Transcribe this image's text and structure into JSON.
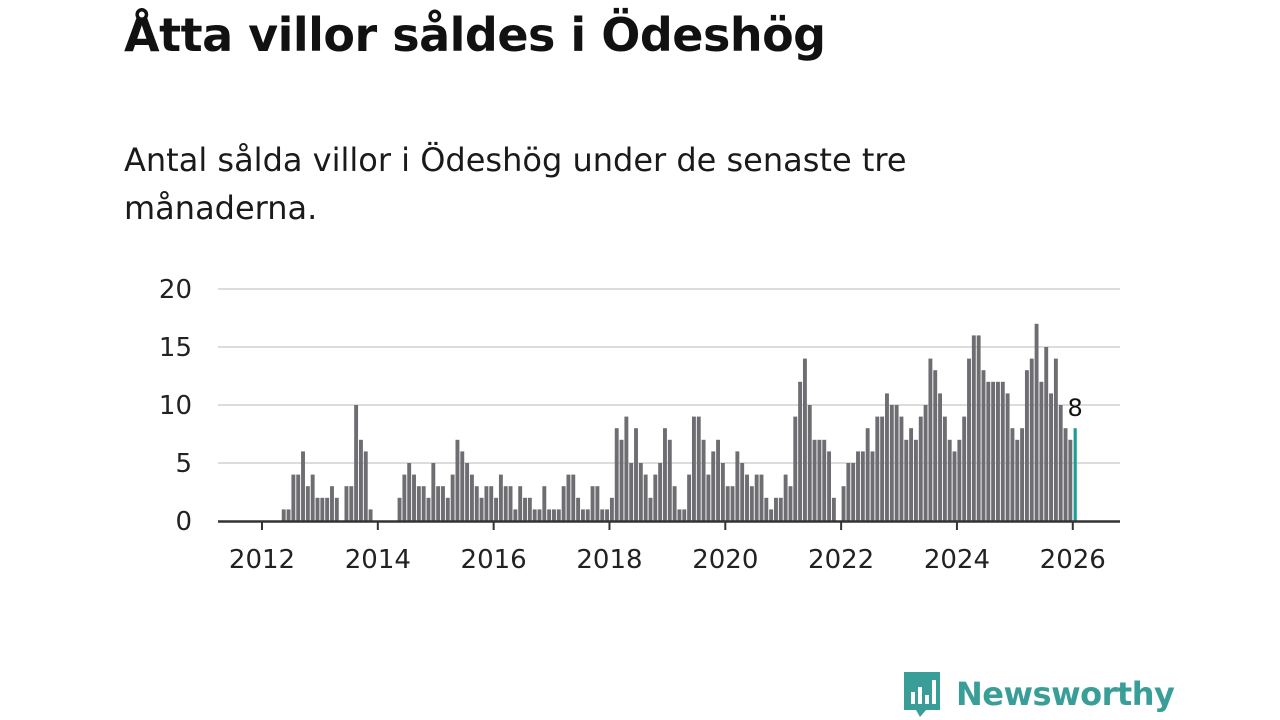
{
  "title": "Åtta villor såldes i Ödeshög",
  "subtitle": "Antal sålda villor i Ödeshög under de senaste tre månaderna.",
  "brand": {
    "name": "Newsworthy",
    "color": "#3a9e98",
    "icon": "newsworthy-logo-icon"
  },
  "colors": {
    "bar": "#6e6d72",
    "highlight": "#1f9c97",
    "grid": "#dcdcdc",
    "axis": "#333333"
  },
  "chart_data": {
    "type": "bar",
    "title": "Åtta villor såldes i Ödeshög",
    "xlabel": "",
    "ylabel": "",
    "ylim": [
      0,
      20
    ],
    "yticks": [
      0,
      5,
      10,
      15,
      20
    ],
    "xticks": [
      {
        "label": "2012",
        "at": 2012.0
      },
      {
        "label": "2014",
        "at": 2014.0
      },
      {
        "label": "2016",
        "at": 2016.0
      },
      {
        "label": "2018",
        "at": 2018.0
      },
      {
        "label": "2020",
        "at": 2020.0
      },
      {
        "label": "2022",
        "at": 2022.0
      },
      {
        "label": "2024",
        "at": 2024.0
      },
      {
        "label": "2026",
        "at": 2026.0
      }
    ],
    "start": "2012-01",
    "interval": "month",
    "values": [
      0,
      0,
      0,
      0,
      1,
      1,
      4,
      4,
      6,
      3,
      4,
      2,
      2,
      2,
      3,
      2,
      0,
      3,
      3,
      10,
      7,
      6,
      1,
      0,
      0,
      0,
      0,
      0,
      2,
      4,
      5,
      4,
      3,
      3,
      2,
      5,
      3,
      3,
      2,
      4,
      7,
      6,
      5,
      4,
      3,
      2,
      3,
      3,
      2,
      4,
      3,
      3,
      1,
      3,
      2,
      2,
      1,
      1,
      3,
      1,
      1,
      1,
      3,
      4,
      4,
      2,
      1,
      1,
      3,
      3,
      1,
      1,
      2,
      8,
      7,
      9,
      5,
      8,
      5,
      4,
      2,
      4,
      5,
      8,
      7,
      3,
      1,
      1,
      4,
      9,
      9,
      7,
      4,
      6,
      7,
      5,
      3,
      3,
      6,
      5,
      4,
      3,
      4,
      4,
      2,
      1,
      2,
      2,
      4,
      3,
      9,
      12,
      14,
      10,
      7,
      7,
      7,
      6,
      2,
      0,
      3,
      5,
      5,
      6,
      6,
      8,
      6,
      9,
      9,
      11,
      10,
      10,
      9,
      7,
      8,
      7,
      9,
      10,
      14,
      13,
      11,
      9,
      7,
      6,
      7,
      9,
      14,
      16,
      16,
      13,
      12,
      12,
      12,
      12,
      11,
      8,
      7,
      8,
      13,
      14,
      17,
      12,
      15,
      11,
      14,
      10,
      8,
      7,
      8
    ],
    "highlight_index": 168,
    "annotation": {
      "label": "8",
      "index": 168
    }
  }
}
